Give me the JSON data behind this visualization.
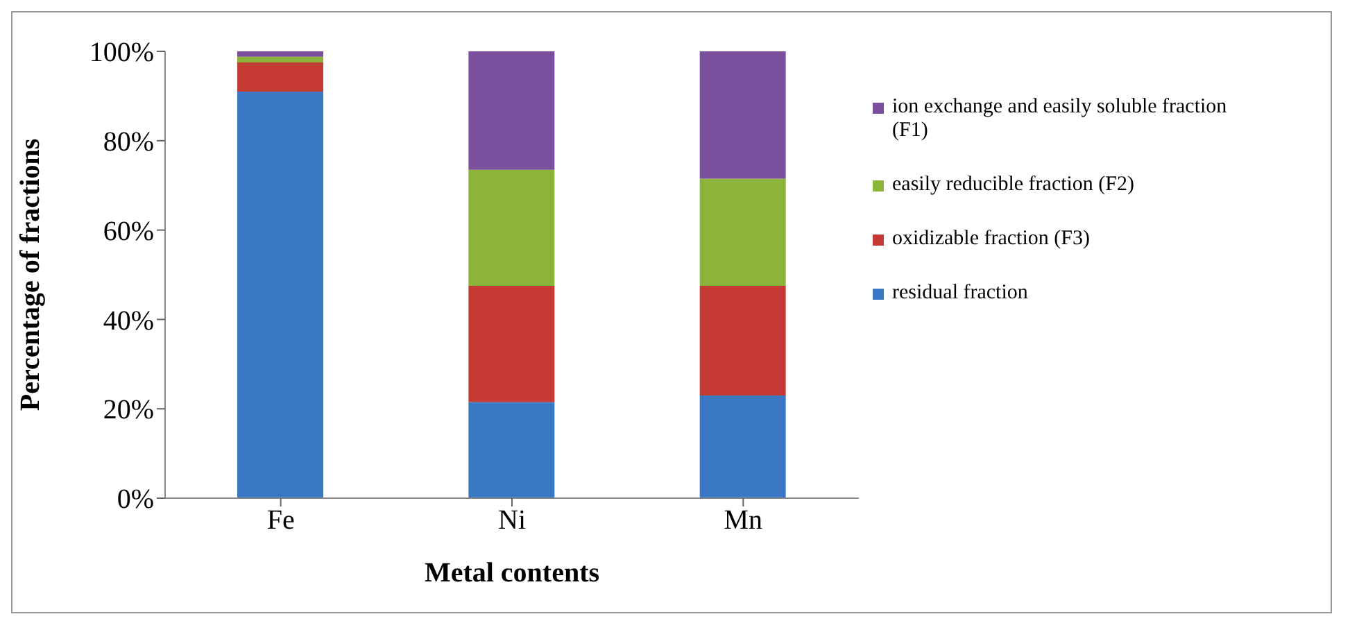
{
  "chart_data": {
    "type": "bar",
    "stacked": true,
    "xlabel": "Metal contents",
    "ylabel": "Percentage of fractions",
    "categories": [
      "Fe",
      "Ni",
      "Mn"
    ],
    "series": [
      {
        "name": "residual fraction",
        "color": "#3a78c4",
        "values": [
          91,
          21.5,
          23
        ]
      },
      {
        "name": "oxidizable fraction (F3)",
        "color": "#c63a34",
        "values": [
          6.5,
          26,
          24.5
        ]
      },
      {
        "name": "easily reducible fraction (F2)",
        "color": "#8cb33a",
        "values": [
          1.3,
          26,
          24
        ]
      },
      {
        "name": "ion exchange and easily soluble fraction (F1)",
        "color": "#7a4f9e",
        "values": [
          1.2,
          26.5,
          28.5
        ]
      }
    ],
    "ylim": [
      0,
      100
    ],
    "yticks": [
      {
        "value": 0,
        "label": "0%"
      },
      {
        "value": 20,
        "label": "20%"
      },
      {
        "value": 40,
        "label": "40%"
      },
      {
        "value": 60,
        "label": "60%"
      },
      {
        "value": 80,
        "label": "80%"
      },
      {
        "value": 100,
        "label": "100%"
      }
    ],
    "grid": false,
    "legend": "right"
  }
}
